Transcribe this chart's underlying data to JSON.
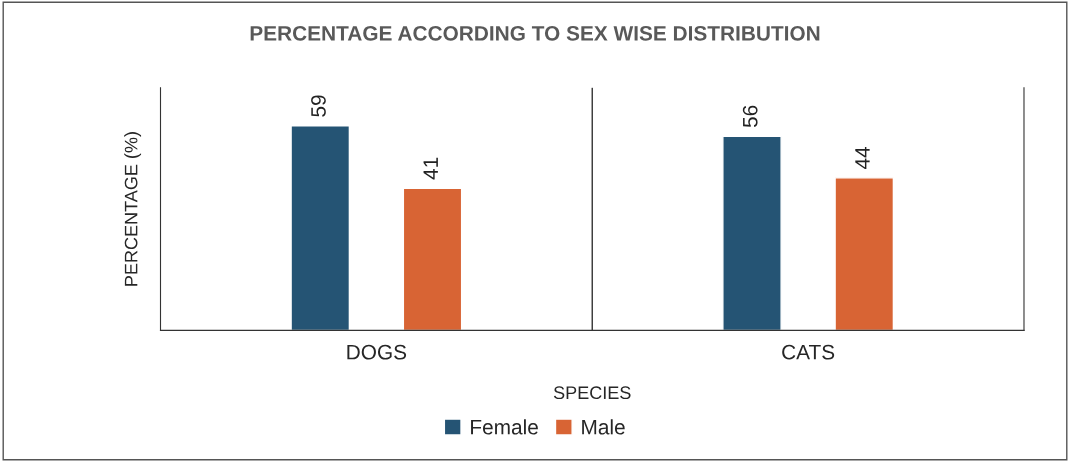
{
  "chart_data": {
    "type": "bar",
    "title": "PERCENTAGE ACCORDING TO SEX WISE DISTRIBUTION",
    "xlabel": "SPECIES",
    "ylabel": "PERCENTAGE (%)",
    "categories": [
      "DOGS",
      "CATS"
    ],
    "series": [
      {
        "name": "Female",
        "color": "#255474",
        "values": [
          59,
          56
        ]
      },
      {
        "name": "Male",
        "color": "#d86434",
        "values": [
          41,
          44
        ]
      }
    ],
    "ylim": [
      0,
      70
    ],
    "tick_labels": "x",
    "data_labels": true,
    "legend": "bottom",
    "grid": false
  }
}
